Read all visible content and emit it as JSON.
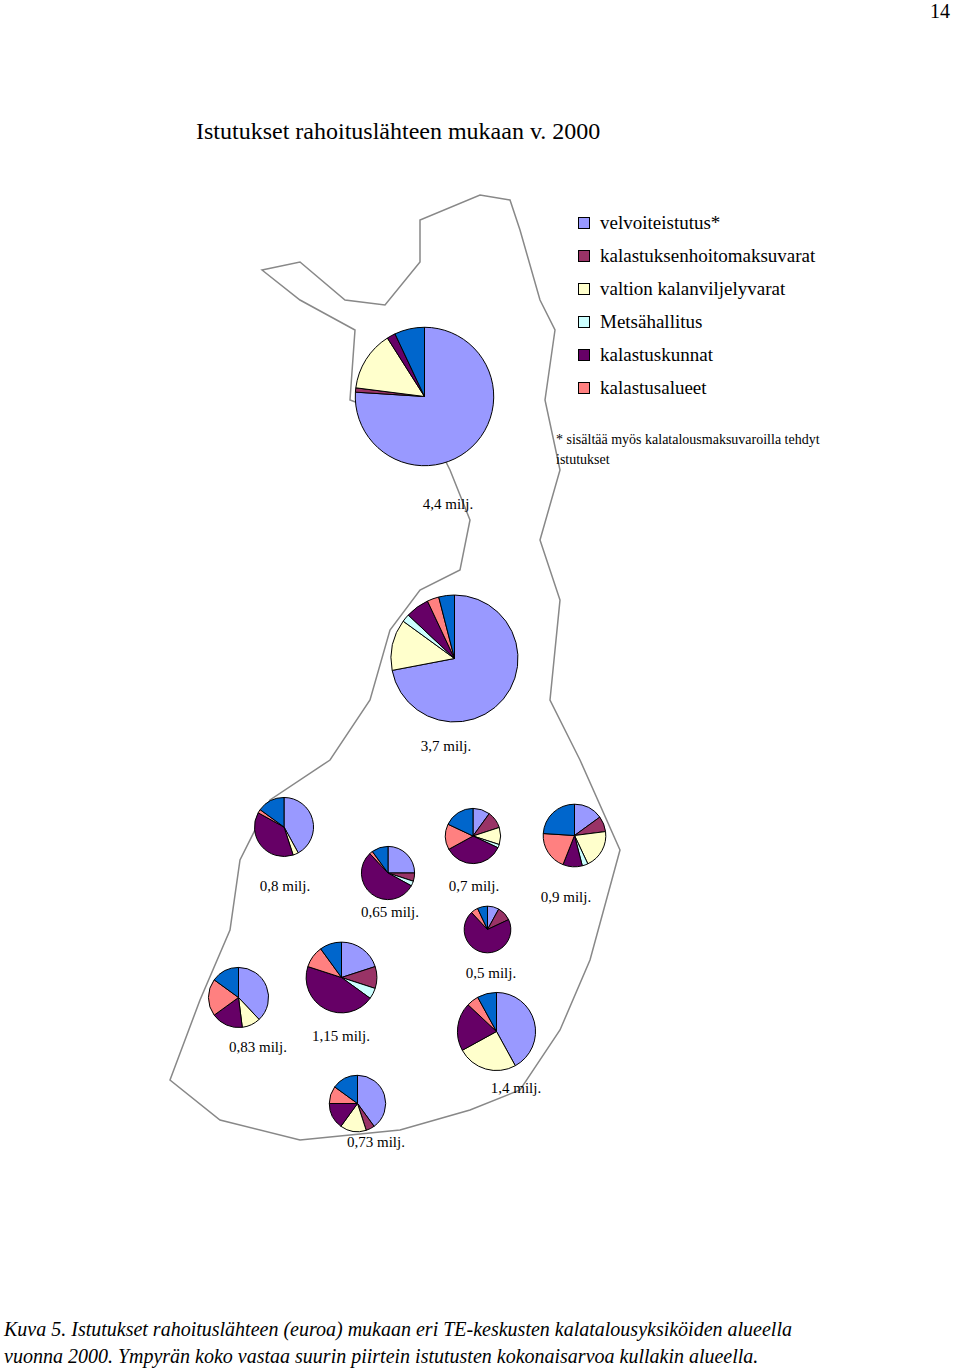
{
  "page_number": "14",
  "chart_data": {
    "type": "pie",
    "title": "Istutukset rahoituslähteen mukaan v. 2000",
    "series": [
      {
        "name": "velvoiteistutus*",
        "color": "#9999ff"
      },
      {
        "name": "kalastuksenhoitomaksuvarat",
        "color": "#993366"
      },
      {
        "name": "valtion kalanviljelyvarat",
        "color": "#ffffcc"
      },
      {
        "name": "Metsähallitus",
        "color": "#ccffff"
      },
      {
        "name": "kalastuskunnat",
        "color": "#660066"
      },
      {
        "name": "kalastusalueet",
        "color": "#ff8080"
      },
      {
        "name": null,
        "color": "#0066cc"
      }
    ],
    "note": [
      "* sisältää myös kalatalousmaksuvaroilla tehdyt",
      "istutukset"
    ],
    "pies": [
      {
        "total": {
          "value": 4.4,
          "label": "4,4 milj."
        },
        "values": [
          76,
          1,
          14,
          0,
          2,
          0,
          7
        ]
      },
      {
        "total": {
          "value": 3.7,
          "label": "3,7 milj."
        },
        "values": [
          72,
          0,
          13,
          2,
          6,
          3,
          4
        ]
      },
      {
        "total": {
          "value": 0.8,
          "label": "0,8 milj."
        },
        "values": [
          42,
          0,
          3,
          0,
          38,
          2,
          15
        ]
      },
      {
        "total": {
          "value": 0.65,
          "label": "0,65 milj."
        },
        "values": [
          25,
          5,
          0,
          3,
          55,
          2,
          10
        ]
      },
      {
        "total": {
          "value": 0.7,
          "label": "0,7 milj."
        },
        "values": [
          10,
          10,
          10,
          2,
          35,
          15,
          18
        ]
      },
      {
        "total": {
          "value": 0.9,
          "label": "0,9 milj."
        },
        "values": [
          15,
          8,
          20,
          3,
          10,
          20,
          24
        ]
      },
      {
        "total": {
          "value": 0.5,
          "label": "0,5 milj."
        },
        "values": [
          8,
          10,
          0,
          0,
          70,
          5,
          7
        ]
      },
      {
        "total": {
          "value": 0.83,
          "label": "0,83 milj."
        },
        "values": [
          38,
          0,
          10,
          0,
          17,
          20,
          15
        ]
      },
      {
        "total": {
          "value": 1.15,
          "label": "1,15 milj."
        },
        "values": [
          20,
          10,
          0,
          5,
          45,
          10,
          10
        ]
      },
      {
        "total": {
          "value": 1.4,
          "label": "1,4 milj."
        },
        "values": [
          42,
          0,
          25,
          0,
          20,
          5,
          8
        ]
      },
      {
        "total": {
          "value": 0.73,
          "label": "0,73 milj."
        },
        "values": [
          40,
          5,
          15,
          0,
          15,
          10,
          15
        ]
      }
    ]
  },
  "caption": [
    "Kuva 5. Istutukset rahoituslähteen (euroa) mukaan eri TE-keskusten kalatalousyksiköiden alueella",
    "vuonna 2000. Ympyrän koko vastaa suurin piirtein istutusten kokonaisarvoa kullakin alueella."
  ]
}
